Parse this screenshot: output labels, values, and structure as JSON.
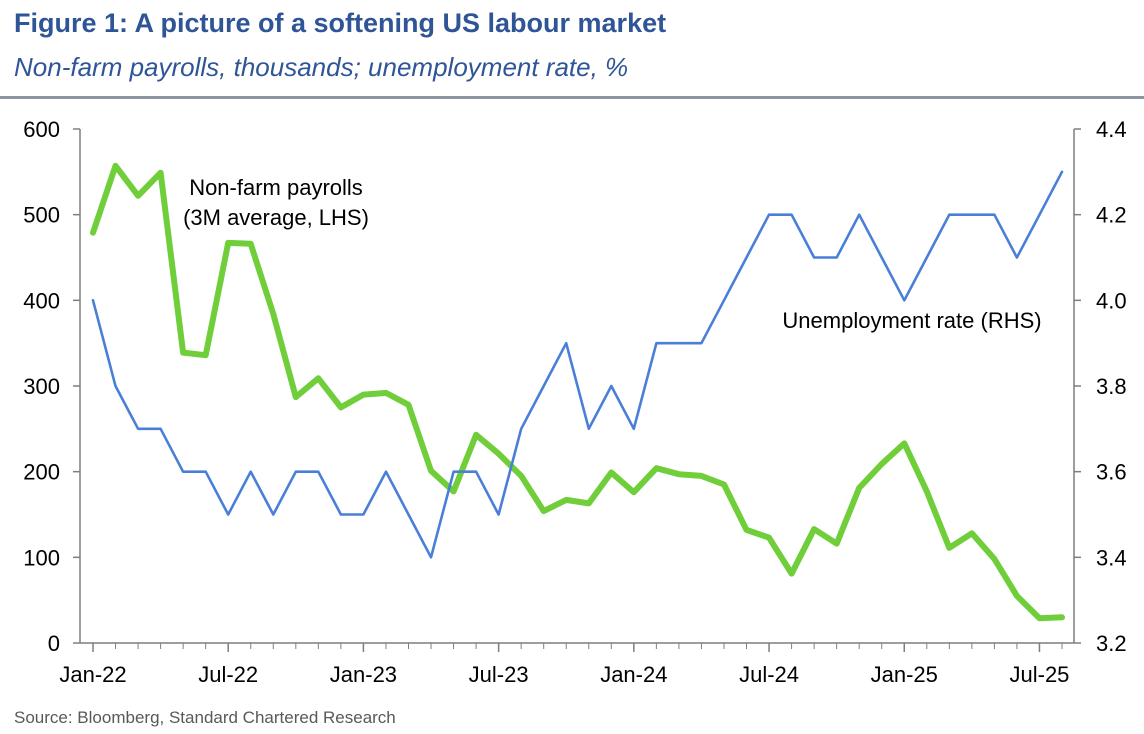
{
  "header": {
    "title": "Figure 1: A picture of a softening US labour market",
    "subtitle": "Non-farm payrolls, thousands; unemployment rate, %"
  },
  "footer": {
    "source": "Source: Bloomberg, Standard Chartered Research"
  },
  "chart_data": {
    "type": "line",
    "title": "Figure 1: A picture of a softening US labour market",
    "subtitle": "Non-farm payrolls, thousands; unemployment rate, %",
    "x": [
      "2022-01",
      "2022-02",
      "2022-03",
      "2022-04",
      "2022-05",
      "2022-06",
      "2022-07",
      "2022-08",
      "2022-09",
      "2022-10",
      "2022-11",
      "2022-12",
      "2023-01",
      "2023-02",
      "2023-03",
      "2023-04",
      "2023-05",
      "2023-06",
      "2023-07",
      "2023-08",
      "2023-09",
      "2023-10",
      "2023-11",
      "2023-12",
      "2024-01",
      "2024-02",
      "2024-03",
      "2024-04",
      "2024-05",
      "2024-06",
      "2024-07",
      "2024-08",
      "2024-09",
      "2024-10",
      "2024-11",
      "2024-12",
      "2025-01",
      "2025-02",
      "2025-03",
      "2025-04",
      "2025-05",
      "2025-06",
      "2025-07",
      "2025-08"
    ],
    "x_ticks": [
      {
        "x": "2022-01",
        "label": "Jan-22"
      },
      {
        "x": "2022-07",
        "label": "Jul-22"
      },
      {
        "x": "2023-01",
        "label": "Jan-23"
      },
      {
        "x": "2023-07",
        "label": "Jul-23"
      },
      {
        "x": "2024-01",
        "label": "Jan-24"
      },
      {
        "x": "2024-07",
        "label": "Jul-24"
      },
      {
        "x": "2025-01",
        "label": "Jan-25"
      },
      {
        "x": "2025-07",
        "label": "Jul-25"
      }
    ],
    "y_left": {
      "min": 0,
      "max": 600,
      "ticks": [
        0,
        100,
        200,
        300,
        400,
        500,
        600
      ]
    },
    "y_right": {
      "min": 3.2,
      "max": 4.4,
      "ticks": [
        "3.2",
        "3.4",
        "3.6",
        "3.8",
        "4.0",
        "4.2",
        "4.4"
      ]
    },
    "grid": false,
    "series": [
      {
        "name": "Non-farm payrolls (3M average, LHS)",
        "label_lines": [
          "Non-farm payrolls",
          "(3M average, LHS)"
        ],
        "axis": "left",
        "color": "#6fce3a",
        "values": [
          479,
          557,
          522,
          549,
          339,
          336,
          467,
          466,
          384,
          287,
          309,
          275,
          290,
          292,
          278,
          201,
          177,
          243,
          221,
          195,
          154,
          167,
          163,
          199,
          176,
          204,
          197,
          195,
          185,
          132,
          123,
          81,
          133,
          116,
          181,
          209,
          233,
          177,
          111,
          128,
          98,
          55,
          29,
          30
        ]
      },
      {
        "name": "Unemployment rate (RHS)",
        "label_lines": [
          "Unemployment rate (RHS)"
        ],
        "axis": "right",
        "color": "#4a7fd8",
        "values": [
          4.0,
          3.8,
          3.7,
          3.7,
          3.6,
          3.6,
          3.5,
          3.6,
          3.5,
          3.6,
          3.6,
          3.5,
          3.5,
          3.6,
          3.5,
          3.4,
          3.6,
          3.6,
          3.5,
          3.7,
          3.8,
          3.9,
          3.7,
          3.8,
          3.7,
          3.9,
          3.9,
          3.9,
          4.0,
          4.1,
          4.2,
          4.2,
          4.1,
          4.1,
          4.2,
          4.1,
          4.0,
          4.1,
          4.2,
          4.2,
          4.2,
          4.1,
          4.2,
          4.3
        ]
      }
    ]
  }
}
